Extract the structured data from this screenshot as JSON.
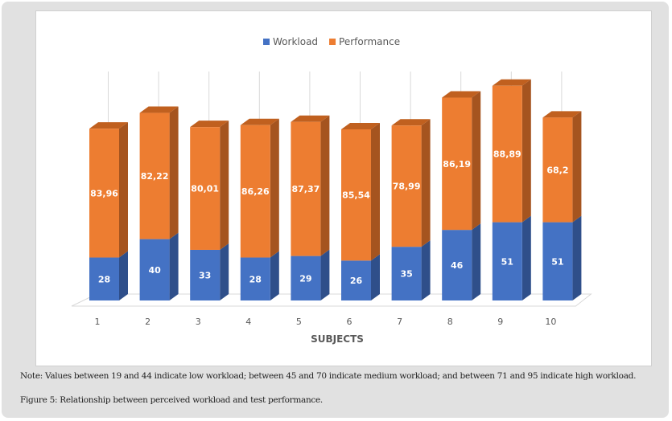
{
  "chart_data": {
    "type": "bar",
    "stacked": true,
    "style": "3d",
    "categories": [
      "1",
      "2",
      "3",
      "4",
      "5",
      "6",
      "7",
      "8",
      "9",
      "10"
    ],
    "series": [
      {
        "name": "Workload",
        "color": "#4472c4",
        "values": [
          28,
          40,
          33,
          28,
          29,
          26,
          35,
          46,
          51,
          51
        ],
        "labels": [
          "28",
          "40",
          "33",
          "28",
          "29",
          "26",
          "35",
          "46",
          "51",
          "51"
        ]
      },
      {
        "name": "Performance",
        "color": "#ed7d31",
        "values": [
          83.96,
          82.22,
          80.01,
          86.26,
          87.37,
          85.54,
          78.99,
          86.19,
          88.89,
          68.2
        ],
        "labels": [
          "83,96",
          "82,22",
          "80,01",
          "86,26",
          "87,37",
          "85,54",
          "78,99",
          "86,19",
          "88,89",
          "68,2"
        ]
      }
    ],
    "title": "",
    "xlabel": "SUBJECTS",
    "ylabel": "",
    "ylim": [
      0,
      150
    ],
    "grid": true,
    "legend": "top-center"
  },
  "caption": {
    "note": "Note: Values between 19 and 44 indicate low workload; between 45 and 70 indicate medium workload; and between 71 and 95 indicate high workload.",
    "figure": "Figure 5: Relationship between perceived workload and test performance."
  }
}
